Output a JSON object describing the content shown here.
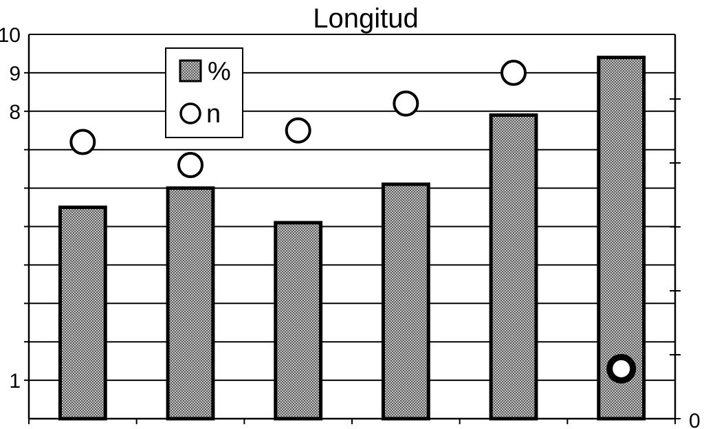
{
  "chart_data": {
    "type": "bar",
    "title": "Longitud",
    "categories": [
      "",
      "",
      "",
      "",
      "",
      ""
    ],
    "legend": {
      "placement": "top-left",
      "items": [
        "%",
        "n"
      ]
    },
    "left_axis": {
      "ylim": [
        0,
        10
      ],
      "tick_labels": [
        "10",
        "9",
        "8",
        "1"
      ],
      "tick_values": [
        10,
        9,
        8,
        1
      ]
    },
    "right_axis": {
      "tick_label": "0"
    },
    "grid": true,
    "series": [
      {
        "name": "%",
        "kind": "bar",
        "values": [
          5.5,
          6.0,
          5.1,
          6.1,
          7.9,
          9.4
        ]
      },
      {
        "name": "n",
        "kind": "marker",
        "values": [
          7.2,
          6.6,
          7.5,
          8.2,
          9.0,
          1.3
        ],
        "filled": [
          false,
          false,
          false,
          false,
          false,
          true
        ]
      }
    ],
    "colors": {
      "bar_fill": "#9a9a9a",
      "stroke": "#000000"
    }
  }
}
